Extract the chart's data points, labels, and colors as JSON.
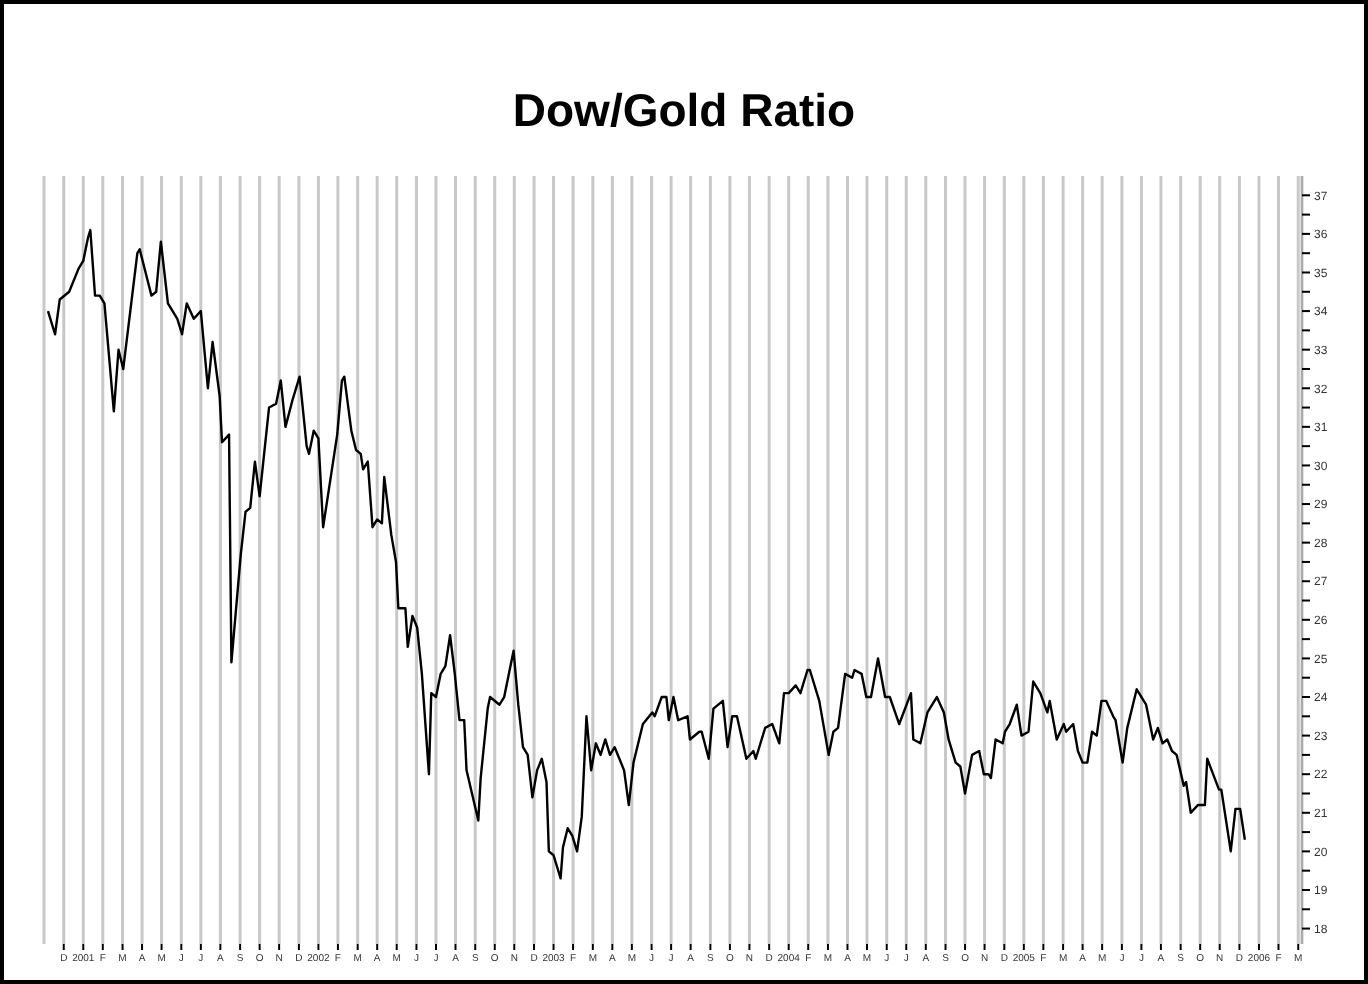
{
  "chart_data": {
    "type": "line",
    "title": "Dow/Gold Ratio",
    "color": "#000000",
    "grid": "x",
    "marker": "none",
    "line_style": "solid",
    "xlim": [
      2000.833,
      2006.183
    ],
    "ylim": [
      17.6,
      37.5
    ],
    "xticks": [
      {
        "value": 2000.917,
        "label": "D"
      },
      2001,
      {
        "value": 2001.083,
        "label": "F"
      },
      {
        "value": 2001.167,
        "label": "M"
      },
      {
        "value": 2001.25,
        "label": "A"
      },
      {
        "value": 2001.333,
        "label": "M"
      },
      {
        "value": 2001.417,
        "label": "J"
      },
      {
        "value": 2001.5,
        "label": "J"
      },
      {
        "value": 2001.583,
        "label": "A"
      },
      {
        "value": 2001.667,
        "label": "S"
      },
      {
        "value": 2001.75,
        "label": "O"
      },
      {
        "value": 2001.833,
        "label": "N"
      },
      {
        "value": 2001.917,
        "label": "D"
      },
      2002,
      {
        "value": 2002.083,
        "label": "F"
      },
      {
        "value": 2002.167,
        "label": "M"
      },
      {
        "value": 2002.25,
        "label": "A"
      },
      {
        "value": 2002.333,
        "label": "M"
      },
      {
        "value": 2002.417,
        "label": "J"
      },
      {
        "value": 2002.5,
        "label": "J"
      },
      {
        "value": 2002.583,
        "label": "A"
      },
      {
        "value": 2002.667,
        "label": "S"
      },
      {
        "value": 2002.75,
        "label": "O"
      },
      {
        "value": 2002.833,
        "label": "N"
      },
      {
        "value": 2002.917,
        "label": "D"
      },
      2003,
      {
        "value": 2003.083,
        "label": "F"
      },
      {
        "value": 2003.167,
        "label": "M"
      },
      {
        "value": 2003.25,
        "label": "A"
      },
      {
        "value": 2003.333,
        "label": "M"
      },
      {
        "value": 2003.417,
        "label": "J"
      },
      {
        "value": 2003.5,
        "label": "J"
      },
      {
        "value": 2003.583,
        "label": "A"
      },
      {
        "value": 2003.667,
        "label": "S"
      },
      {
        "value": 2003.75,
        "label": "O"
      },
      {
        "value": 2003.833,
        "label": "N"
      },
      {
        "value": 2003.917,
        "label": "D"
      },
      2004,
      {
        "value": 2004.083,
        "label": "F"
      },
      {
        "value": 2004.167,
        "label": "M"
      },
      {
        "value": 2004.25,
        "label": "A"
      },
      {
        "value": 2004.333,
        "label": "M"
      },
      {
        "value": 2004.417,
        "label": "J"
      },
      {
        "value": 2004.5,
        "label": "J"
      },
      {
        "value": 2004.583,
        "label": "A"
      },
      {
        "value": 2004.667,
        "label": "S"
      },
      {
        "value": 2004.75,
        "label": "O"
      },
      {
        "value": 2004.833,
        "label": "N"
      },
      {
        "value": 2004.917,
        "label": "D"
      },
      2005,
      {
        "value": 2005.083,
        "label": "F"
      },
      {
        "value": 2005.167,
        "label": "M"
      },
      {
        "value": 2005.25,
        "label": "A"
      },
      {
        "value": 2005.333,
        "label": "M"
      },
      {
        "value": 2005.417,
        "label": "J"
      },
      {
        "value": 2005.5,
        "label": "J"
      },
      {
        "value": 2005.583,
        "label": "A"
      },
      {
        "value": 2005.667,
        "label": "S"
      },
      {
        "value": 2005.75,
        "label": "O"
      },
      {
        "value": 2005.833,
        "label": "N"
      },
      {
        "value": 2005.917,
        "label": "D"
      },
      2006,
      {
        "value": 2006.083,
        "label": "F"
      },
      {
        "value": 2006.167,
        "label": "M"
      }
    ],
    "yticks": [
      18,
      {
        "value": 18.5,
        "label": null
      },
      19,
      {
        "value": 19.5,
        "label": null
      },
      20,
      {
        "value": 20.5,
        "label": null
      },
      21,
      {
        "value": 21.5,
        "label": null
      },
      22,
      {
        "value": 22.5,
        "label": null
      },
      23,
      {
        "value": 23.5,
        "label": null
      },
      24,
      {
        "value": 24.5,
        "label": null
      },
      25,
      {
        "value": 25.5,
        "label": null
      },
      26,
      {
        "value": 26.5,
        "label": null
      },
      27,
      {
        "value": 27.5,
        "label": null
      },
      28,
      {
        "value": 28.5,
        "label": null
      },
      29,
      {
        "value": 29.5,
        "label": null
      },
      30,
      {
        "value": 30.5,
        "label": null
      },
      31,
      {
        "value": 31.5,
        "label": null
      },
      32,
      {
        "value": 32.5,
        "label": null
      },
      33,
      {
        "value": 33.5,
        "label": null
      },
      34,
      {
        "value": 34.5,
        "label": null
      },
      35,
      {
        "value": 35.5,
        "label": null
      },
      36,
      {
        "value": 36.5,
        "label": null
      },
      37
    ],
    "x": [
      2000.85,
      2000.88,
      2000.9,
      2000.94,
      2000.98,
      2001.0,
      2001.02,
      2001.03,
      2001.05,
      2001.07,
      2001.09,
      2001.13,
      2001.15,
      2001.17,
      2001.23,
      2001.24,
      2001.29,
      2001.31,
      2001.33,
      2001.36,
      2001.4,
      2001.42,
      2001.44,
      2001.47,
      2001.5,
      2001.53,
      2001.55,
      2001.58,
      2001.59,
      2001.62,
      2001.63,
      2001.67,
      2001.69,
      2001.71,
      2001.73,
      2001.75,
      2001.79,
      2001.82,
      2001.84,
      2001.86,
      2001.89,
      2001.92,
      2001.95,
      2001.96,
      2001.98,
      2002.0,
      2002.02,
      2002.08,
      2002.1,
      2002.11,
      2002.14,
      2002.16,
      2002.18,
      2002.19,
      2002.21,
      2002.23,
      2002.25,
      2002.27,
      2002.28,
      2002.31,
      2002.33,
      2002.34,
      2002.37,
      2002.38,
      2002.4,
      2002.42,
      2002.44,
      2002.47,
      2002.48,
      2002.5,
      2002.52,
      2002.54,
      2002.56,
      2002.58,
      2002.6,
      2002.62,
      2002.63,
      2002.68,
      2002.69,
      2002.72,
      2002.73,
      2002.77,
      2002.79,
      2002.83,
      2002.85,
      2002.87,
      2002.89,
      2002.91,
      2002.93,
      2002.95,
      2002.97,
      2002.98,
      2003.0,
      2003.03,
      2003.04,
      2003.06,
      2003.08,
      2003.1,
      2003.12,
      2003.14,
      2003.16,
      2003.18,
      2003.2,
      2003.22,
      2003.24,
      2003.26,
      2003.28,
      2003.3,
      2003.32,
      2003.34,
      2003.38,
      2003.42,
      2003.43,
      2003.46,
      2003.48,
      2003.49,
      2003.51,
      2003.53,
      2003.57,
      2003.58,
      2003.62,
      2003.63,
      2003.66,
      2003.68,
      2003.72,
      2003.74,
      2003.76,
      2003.78,
      2003.82,
      2003.85,
      2003.86,
      2003.9,
      2003.93,
      2003.96,
      2003.98,
      2004.0,
      2004.03,
      2004.05,
      2004.08,
      2004.09,
      2004.13,
      2004.17,
      2004.19,
      2004.21,
      2004.24,
      2004.27,
      2004.28,
      2004.31,
      2004.33,
      2004.35,
      2004.38,
      2004.41,
      2004.43,
      2004.47,
      2004.52,
      2004.53,
      2004.56,
      2004.59,
      2004.63,
      2004.66,
      2004.68,
      2004.71,
      2004.73,
      2004.75,
      2004.78,
      2004.81,
      2004.83,
      2004.85,
      2004.86,
      2004.88,
      2004.91,
      2004.92,
      2004.94,
      2004.97,
      2004.99,
      2005.02,
      2005.04,
      2005.07,
      2005.1,
      2005.11,
      2005.14,
      2005.17,
      2005.18,
      2005.21,
      2005.23,
      2005.25,
      2005.27,
      2005.29,
      2005.31,
      2005.33,
      2005.35,
      2005.38,
      2005.39,
      2005.42,
      2005.44,
      2005.48,
      2005.52,
      2005.55,
      2005.57,
      2005.59,
      2005.61,
      2005.63,
      2005.65,
      2005.68,
      2005.69,
      2005.71,
      2005.74,
      2005.77,
      2005.78,
      2005.83,
      2005.84,
      2005.88,
      2005.9,
      2005.92,
      2005.94
    ],
    "values": [
      34.0,
      33.4,
      34.3,
      34.5,
      35.1,
      35.3,
      35.9,
      36.1,
      34.4,
      34.4,
      34.2,
      31.4,
      33.0,
      32.5,
      35.5,
      35.6,
      34.4,
      34.5,
      35.8,
      34.2,
      33.8,
      33.4,
      34.2,
      33.8,
      34.0,
      32.0,
      33.2,
      31.8,
      30.6,
      30.8,
      24.9,
      27.7,
      28.8,
      28.9,
      30.1,
      29.2,
      31.5,
      31.6,
      32.2,
      31.0,
      31.7,
      32.3,
      30.5,
      30.3,
      30.9,
      30.7,
      28.4,
      30.8,
      32.2,
      32.3,
      30.9,
      30.4,
      30.3,
      29.9,
      30.1,
      28.4,
      28.6,
      28.5,
      29.7,
      28.2,
      27.5,
      26.3,
      26.3,
      25.3,
      26.1,
      25.8,
      24.6,
      22.0,
      24.1,
      24.0,
      24.6,
      24.8,
      25.6,
      24.6,
      23.4,
      23.4,
      22.1,
      20.8,
      21.9,
      23.7,
      24.0,
      23.8,
      24.0,
      25.2,
      23.8,
      22.7,
      22.5,
      21.4,
      22.1,
      22.4,
      21.8,
      20.0,
      19.9,
      19.3,
      20.1,
      20.6,
      20.4,
      20.0,
      20.9,
      23.5,
      22.1,
      22.8,
      22.5,
      22.9,
      22.5,
      22.7,
      22.4,
      22.1,
      21.2,
      22.3,
      23.3,
      23.6,
      23.5,
      24.0,
      24.0,
      23.4,
      24.0,
      23.4,
      23.5,
      22.9,
      23.1,
      23.1,
      22.4,
      23.7,
      23.9,
      22.7,
      23.5,
      23.5,
      22.4,
      22.6,
      22.4,
      23.2,
      23.3,
      22.8,
      24.1,
      24.1,
      24.3,
      24.1,
      24.7,
      24.7,
      23.9,
      22.5,
      23.1,
      23.2,
      24.6,
      24.5,
      24.7,
      24.6,
      24.0,
      24.0,
      25.0,
      24.0,
      24.0,
      23.3,
      24.1,
      22.9,
      22.8,
      23.6,
      24.0,
      23.6,
      22.9,
      22.3,
      22.2,
      21.5,
      22.5,
      22.6,
      22.0,
      22.0,
      21.9,
      22.9,
      22.8,
      23.1,
      23.3,
      23.8,
      23.0,
      23.1,
      24.4,
      24.1,
      23.6,
      23.9,
      22.9,
      23.3,
      23.1,
      23.3,
      22.6,
      22.3,
      22.3,
      23.1,
      23.0,
      23.9,
      23.9,
      23.5,
      23.4,
      22.3,
      23.2,
      24.2,
      23.8,
      22.9,
      23.2,
      22.8,
      22.9,
      22.6,
      22.5,
      21.7,
      21.8,
      21.0,
      21.2,
      21.2,
      22.4,
      21.6,
      21.6,
      20.0,
      21.1,
      21.1,
      20.3
    ]
  }
}
